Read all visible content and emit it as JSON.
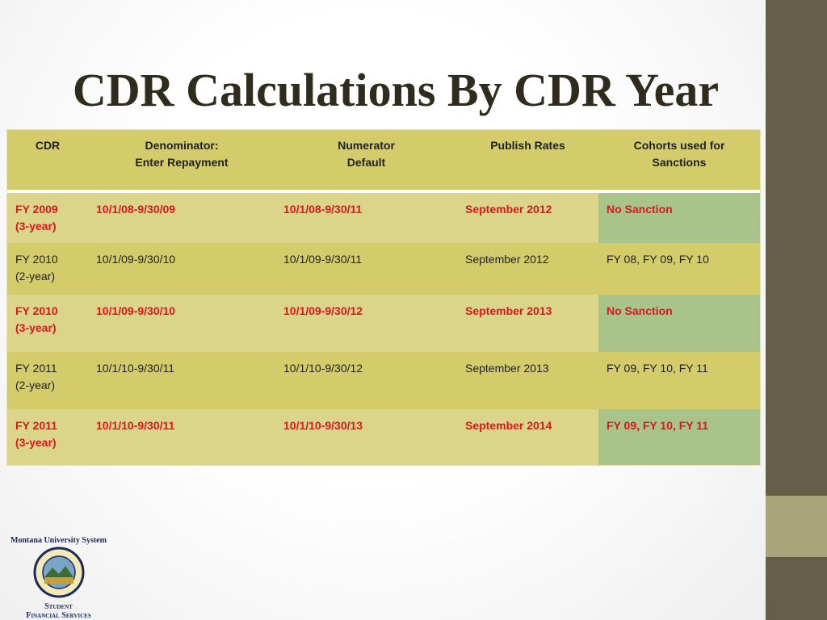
{
  "title": "CDR Calculations By CDR Year",
  "table": {
    "header": [
      "CDR",
      "Denominator:\nEnter Repayment",
      "Numerator\nDefault",
      "Publish Rates",
      "Cohorts used for\nSanctions"
    ],
    "rows": [
      {
        "highlight": true,
        "cells": [
          "FY 2009\n(3-year)",
          "10/1/08-9/30/09",
          "10/1/08-9/30/11",
          "September 2012",
          "No Sanction"
        ]
      },
      {
        "highlight": false,
        "cells": [
          "FY 2010\n(2-year)",
          "10/1/09-9/30/10",
          "10/1/09-9/30/11",
          "September 2012",
          "FY 08, FY 09, FY 10"
        ]
      },
      {
        "highlight": true,
        "cells": [
          "FY 2010\n(3-year)",
          "10/1/09-9/30/10",
          "10/1/09-9/30/12",
          "September 2013",
          "No Sanction"
        ]
      },
      {
        "highlight": false,
        "cells": [
          "FY 2011\n(2-year)",
          "10/1/10-9/30/11",
          "10/1/10-9/30/12",
          "September 2013",
          "FY 09, FY 10, FY 11"
        ]
      },
      {
        "highlight": true,
        "cells": [
          "FY 2011\n(3-year)",
          "10/1/10-9/30/11",
          "10/1/10-9/30/13",
          "September 2014",
          "FY 09, FY 10, FY 11"
        ]
      }
    ]
  },
  "logo": {
    "top": "Montana University System",
    "bottom": "Student\nFinancial Services"
  }
}
